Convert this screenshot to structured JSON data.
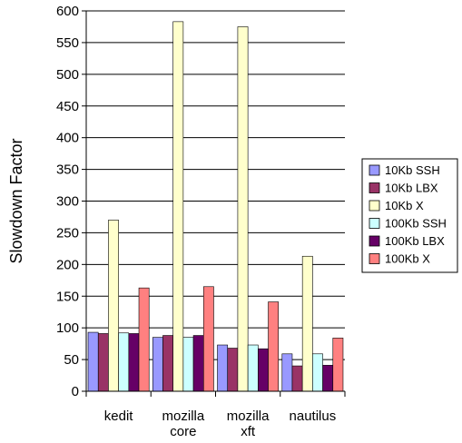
{
  "chart_data": {
    "type": "bar",
    "ylabel": "Slowdown Factor",
    "xlabel": "",
    "title": "",
    "ylim": [
      0,
      600
    ],
    "yticks": [
      0,
      50,
      100,
      150,
      200,
      250,
      300,
      350,
      400,
      450,
      500,
      550,
      600
    ],
    "grid": true,
    "legend_position": "right",
    "categories": [
      [
        "kedit"
      ],
      [
        "mozilla",
        "core"
      ],
      [
        "mozilla",
        "xft"
      ],
      [
        "nautilus"
      ]
    ],
    "series": [
      {
        "name": "10Kb SSH",
        "color": "#9999ff",
        "values": [
          93,
          85,
          73,
          59
        ]
      },
      {
        "name": "10Kb LBX",
        "color": "#993366",
        "values": [
          91,
          88,
          68,
          40
        ]
      },
      {
        "name": "10Kb X",
        "color": "#ffffcc",
        "values": [
          270,
          583,
          575,
          213
        ]
      },
      {
        "name": "100Kb SSH",
        "color": "#ccffff",
        "values": [
          92,
          85,
          73,
          59
        ]
      },
      {
        "name": "100Kb LBX",
        "color": "#660066",
        "values": [
          91,
          88,
          67,
          41
        ]
      },
      {
        "name": "100Kb X",
        "color": "#ff8080",
        "values": [
          163,
          165,
          141,
          84
        ]
      }
    ]
  }
}
